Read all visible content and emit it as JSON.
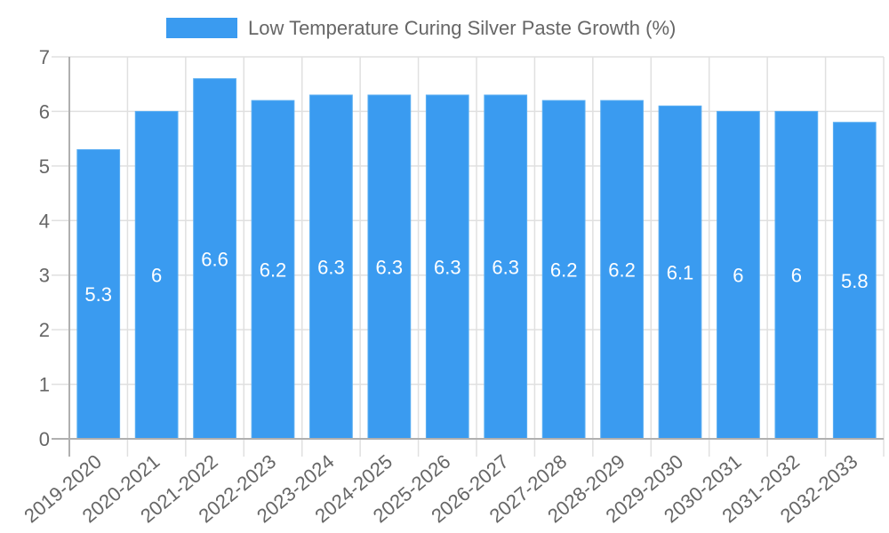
{
  "legend": {
    "label": "Low Temperature Curing Silver Paste Growth (%)",
    "swatch_color": "#3a9bf0"
  },
  "colors": {
    "bar_fill": "#3a9bf0",
    "bar_border": "#5aaef2",
    "grid": "#e0e0e0",
    "axis": "#b0b0b0",
    "tick_text": "#666666",
    "label_text": "#ffffff"
  },
  "chart_data": {
    "type": "bar",
    "title": "",
    "xlabel": "",
    "ylabel": "",
    "ylim": [
      0,
      7
    ],
    "yticks": [
      0,
      1,
      2,
      3,
      4,
      5,
      6,
      7
    ],
    "grid": true,
    "legend_position": "top",
    "categories": [
      "2019-2020",
      "2020-2021",
      "2021-2022",
      "2022-2023",
      "2023-2024",
      "2024-2025",
      "2025-2026",
      "2026-2027",
      "2027-2028",
      "2028-2029",
      "2029-2030",
      "2030-2031",
      "2031-2032",
      "2032-2033"
    ],
    "series": [
      {
        "name": "Low Temperature Curing Silver Paste Growth (%)",
        "values": [
          5.3,
          6,
          6.6,
          6.2,
          6.3,
          6.3,
          6.3,
          6.3,
          6.2,
          6.2,
          6.1,
          6,
          6,
          5.8
        ]
      }
    ],
    "data_labels": true
  }
}
